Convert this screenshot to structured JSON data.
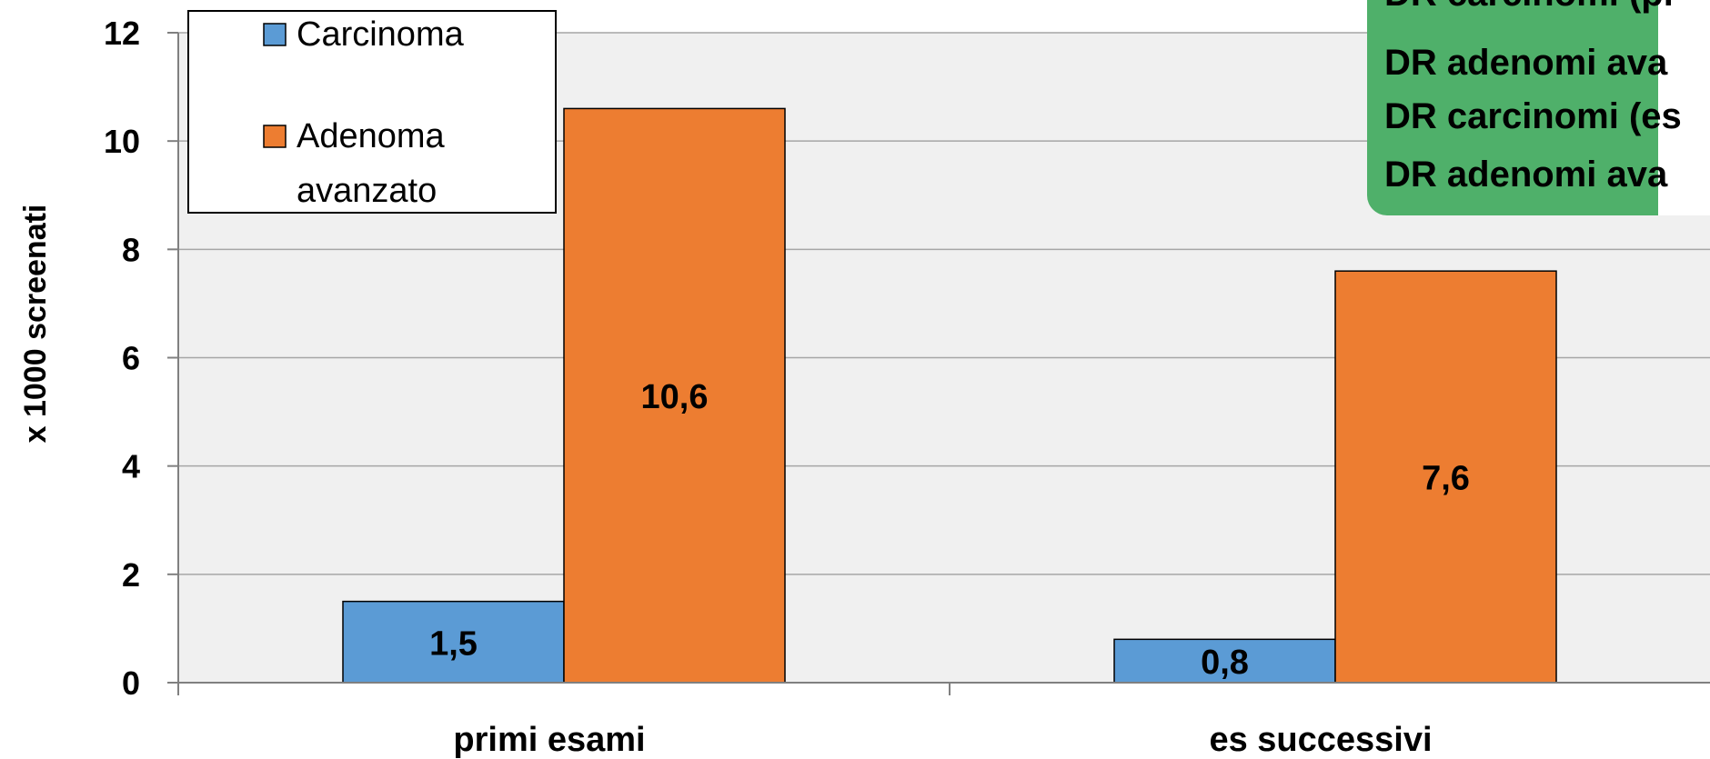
{
  "chart_data": {
    "type": "bar",
    "categories": [
      "primi esami",
      "es successivi"
    ],
    "series": [
      {
        "name": "Carcinoma",
        "values": [
          1.5,
          0.8
        ],
        "labels": [
          "1,5",
          "0,8"
        ],
        "color": "#5b9bd5"
      },
      {
        "name": "Adenoma avanzato",
        "legend_lines": [
          "Adenoma",
          "avanzato"
        ],
        "values": [
          10.6,
          7.6
        ],
        "labels": [
          "10,6",
          "7,6"
        ],
        "color": "#ed7d31"
      }
    ],
    "ylabel": "x 1000 screenati",
    "ylim": [
      0,
      12
    ],
    "yticks": [
      "0",
      "2",
      "4",
      "6",
      "8",
      "10",
      "12"
    ],
    "grid": true,
    "legend_position": "top-left",
    "plot_background": "#f0f0f0",
    "annotation_box": {
      "color": "#4fb06a",
      "lines": [
        "DR carcinomi (pr",
        "DR adenomi ava",
        "DR carcinomi (es",
        "DR adenomi ava"
      ]
    }
  }
}
